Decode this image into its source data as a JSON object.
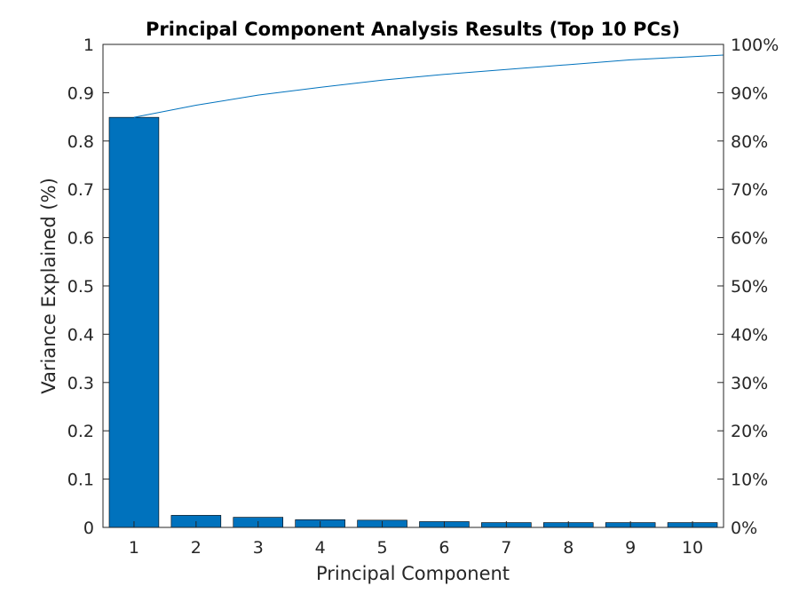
{
  "chart_data": {
    "type": "bar",
    "title": "Principal Component Analysis Results (Top 10 PCs)",
    "xlabel": "Principal Component",
    "ylabel": "Variance Explained (%)",
    "categories": [
      "1",
      "2",
      "3",
      "4",
      "5",
      "6",
      "7",
      "8",
      "9",
      "10"
    ],
    "values": [
      0.849,
      0.025,
      0.021,
      0.016,
      0.015,
      0.012,
      0.01,
      0.01,
      0.01,
      0.01
    ],
    "ylim": [
      0,
      1
    ],
    "yticks": [
      "0",
      "0.1",
      "0.2",
      "0.3",
      "0.4",
      "0.5",
      "0.6",
      "0.7",
      "0.8",
      "0.9",
      "1"
    ],
    "y2lim": [
      0,
      100
    ],
    "y2ticks": [
      "0%",
      "10%",
      "20%",
      "30%",
      "40%",
      "50%",
      "60%",
      "70%",
      "80%",
      "90%",
      "100%"
    ],
    "cumulative": {
      "type": "line",
      "axis": "right",
      "values": [
        84.9,
        87.4,
        89.5,
        91.1,
        92.6,
        93.8,
        94.8,
        95.8,
        96.8,
        97.8
      ]
    },
    "bar_color": "#0072BD",
    "line_color": "#0072BD",
    "grid": false,
    "legend": "none"
  }
}
